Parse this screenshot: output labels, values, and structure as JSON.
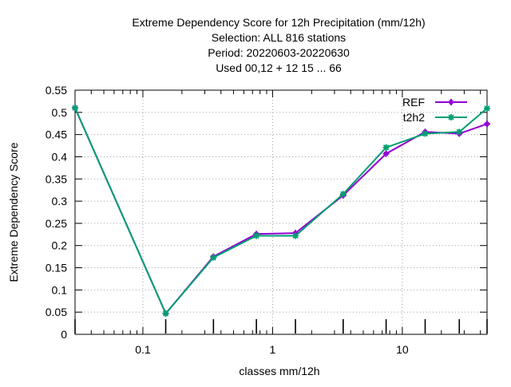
{
  "chart_data": {
    "type": "line",
    "title_lines": [
      "Extreme Dependency Score  for 12h Precipitation (mm/12h)",
      "Selection: ALL     816 stations",
      "Period: 20220603-20220630",
      "Used  00,12  + 12 15 ... 66"
    ],
    "xlabel": "classes mm/12h",
    "ylabel": "Extreme Dependency Score",
    "x_scale": "log",
    "xlim": [
      0.03,
      45
    ],
    "ylim": [
      0,
      0.55
    ],
    "grid": true,
    "legend_position": "top-right",
    "x_ticks": [
      0.1,
      1,
      10
    ],
    "x_tick_labels": [
      "0.1",
      "1",
      "10"
    ],
    "y_ticks": [
      0,
      0.05,
      0.1,
      0.15,
      0.2,
      0.25,
      0.3,
      0.35,
      0.4,
      0.45,
      0.5,
      0.55
    ],
    "y_tick_labels": [
      "0",
      "0.05",
      "0.1",
      "0.15",
      "0.2",
      "0.25",
      "0.3",
      "0.35",
      "0.4",
      "0.45",
      "0.5",
      "0.55"
    ],
    "x": [
      0.03,
      0.15,
      0.35,
      0.75,
      1.5,
      3.5,
      7.5,
      15,
      27.5,
      45
    ],
    "series": [
      {
        "name": "REF",
        "color": "#9400d3",
        "marker": "plus",
        "values": [
          0.51,
          0.047,
          0.175,
          0.226,
          0.228,
          0.313,
          0.407,
          0.456,
          0.452,
          0.474
        ]
      },
      {
        "name": "t2h2",
        "color": "#009e73",
        "marker": "star",
        "values": [
          0.51,
          0.047,
          0.173,
          0.222,
          0.222,
          0.316,
          0.421,
          0.452,
          0.456,
          0.509
        ]
      }
    ]
  }
}
